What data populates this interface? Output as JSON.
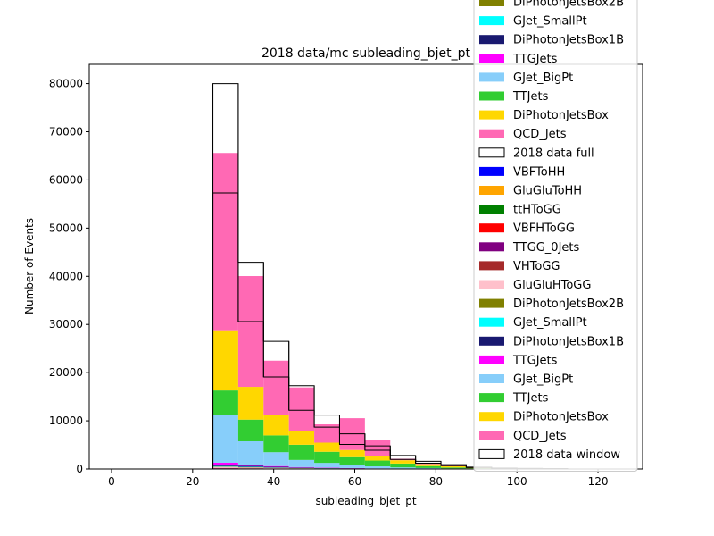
{
  "chart_data": {
    "type": "bar",
    "stacked": true,
    "title": "2018 data/mc subleading_bjet_pt",
    "xlabel": "subleading_bjet_pt",
    "ylabel": "Number of Events",
    "xlim": [
      -5.5,
      131
    ],
    "ylim": [
      0,
      84000
    ],
    "x_ticks": [
      0,
      20,
      40,
      60,
      80,
      100,
      120
    ],
    "y_ticks": [
      0,
      10000,
      20000,
      30000,
      40000,
      50000,
      60000,
      70000,
      80000
    ],
    "bin_edges": [
      0,
      6.25,
      12.5,
      18.75,
      25,
      31.25,
      37.5,
      43.75,
      50,
      56.25,
      62.5,
      68.75,
      75,
      81.25,
      87.5,
      93.75,
      100,
      106.25,
      112.5,
      118.75,
      125
    ],
    "legend_position": "upper right",
    "stack_full": [
      {
        "name": "VBFToHH",
        "color": "#0000ff",
        "values": [
          0,
          0,
          0,
          0,
          0,
          0,
          0,
          0,
          0,
          0,
          0,
          0,
          0,
          0,
          0,
          0,
          0,
          0,
          0,
          0
        ]
      },
      {
        "name": "GluGluToHH",
        "color": "#ffa500",
        "values": [
          0,
          0,
          0,
          0,
          0,
          0,
          0,
          0,
          0,
          0,
          0,
          0,
          0,
          0,
          0,
          0,
          0,
          0,
          0,
          0
        ]
      },
      {
        "name": "ttHToGG",
        "color": "#008000",
        "values": [
          0,
          0,
          0,
          0,
          50,
          40,
          30,
          20,
          15,
          10,
          6,
          4,
          3,
          2,
          1,
          0,
          0,
          0,
          0,
          0
        ]
      },
      {
        "name": "VBFHToGG",
        "color": "#ff0000",
        "values": [
          0,
          0,
          0,
          0,
          60,
          40,
          30,
          20,
          15,
          10,
          6,
          4,
          3,
          2,
          1,
          0,
          0,
          0,
          0,
          0
        ]
      },
      {
        "name": "TTGG_0Jets",
        "color": "#800080",
        "values": [
          0,
          0,
          0,
          0,
          50,
          40,
          30,
          20,
          15,
          10,
          6,
          4,
          3,
          2,
          1,
          0,
          0,
          0,
          0,
          0
        ]
      },
      {
        "name": "VHToGG",
        "color": "#a52a2a",
        "values": [
          0,
          0,
          0,
          0,
          60,
          40,
          30,
          20,
          15,
          10,
          6,
          4,
          3,
          2,
          1,
          0,
          0,
          0,
          0,
          0
        ]
      },
      {
        "name": "GluGluHToGG",
        "color": "#ffc0cb",
        "values": [
          0,
          0,
          0,
          0,
          200,
          150,
          100,
          70,
          50,
          30,
          20,
          12,
          8,
          5,
          3,
          0,
          0,
          0,
          0,
          0
        ]
      },
      {
        "name": "DiPhotonJetsBox2B",
        "color": "#808000",
        "values": [
          0,
          0,
          0,
          0,
          80,
          60,
          40,
          30,
          20,
          15,
          10,
          6,
          4,
          3,
          2,
          0,
          0,
          0,
          0,
          0
        ]
      },
      {
        "name": "GJet_SmallPt",
        "color": "#00ffff",
        "values": [
          0,
          0,
          0,
          0,
          100,
          80,
          50,
          30,
          20,
          15,
          10,
          6,
          4,
          3,
          2,
          0,
          0,
          0,
          0,
          0
        ]
      },
      {
        "name": "DiPhotonJetsBox1B",
        "color": "#191970",
        "values": [
          0,
          0,
          0,
          0,
          300,
          200,
          150,
          100,
          70,
          50,
          30,
          20,
          12,
          8,
          5,
          0,
          0,
          0,
          0,
          0
        ]
      },
      {
        "name": "TTGJets",
        "color": "#ff00ff",
        "values": [
          0,
          0,
          0,
          0,
          400,
          200,
          150,
          100,
          70,
          50,
          30,
          20,
          12,
          8,
          5,
          0,
          0,
          0,
          0,
          0
        ]
      },
      {
        "name": "GJet_BigPt",
        "color": "#87cefa",
        "values": [
          0,
          0,
          0,
          0,
          10000,
          4900,
          2870,
          1470,
          980,
          650,
          430,
          250,
          150,
          80,
          45,
          0,
          0,
          0,
          0,
          0
        ]
      },
      {
        "name": "TTJets",
        "color": "#32cd32",
        "values": [
          0,
          0,
          0,
          0,
          5000,
          4500,
          3500,
          3150,
          2300,
          1600,
          1200,
          800,
          400,
          200,
          100,
          0,
          0,
          0,
          0,
          0
        ]
      },
      {
        "name": "DiPhotonJetsBox",
        "color": "#ffd700",
        "values": [
          0,
          0,
          0,
          0,
          12500,
          6800,
          4300,
          2800,
          1900,
          1500,
          1000,
          700,
          400,
          250,
          130,
          0,
          0,
          0,
          0,
          0
        ]
      },
      {
        "name": "QCD_Jets",
        "color": "#ff69b4",
        "values": [
          0,
          0,
          0,
          0,
          36800,
          23000,
          11200,
          9100,
          3800,
          6600,
          3200,
          300,
          200,
          100,
          0,
          0,
          0,
          0,
          0,
          0
        ]
      }
    ],
    "data_full": {
      "name": "2018 data full",
      "values": [
        0,
        0,
        0,
        0,
        80000,
        42900,
        26500,
        17300,
        11200,
        7300,
        4800,
        2800,
        1600,
        900,
        400,
        200,
        150,
        100,
        0,
        0
      ]
    },
    "stack_window_note": "second stack drawn on same axes",
    "stack_window": [
      {
        "name": "VBFToHH",
        "color": "#0000ff",
        "values": [
          0,
          0,
          0,
          0,
          0,
          0,
          0,
          0,
          0,
          0,
          0,
          0,
          0,
          0,
          0,
          0,
          0,
          0,
          0,
          0
        ]
      },
      {
        "name": "GluGluToHH",
        "color": "#ffa500",
        "values": [
          0,
          0,
          0,
          0,
          0,
          0,
          0,
          0,
          0,
          0,
          0,
          0,
          0,
          0,
          0,
          0,
          0,
          0,
          0,
          0
        ]
      },
      {
        "name": "ttHToGG",
        "color": "#008000",
        "values": [
          0,
          0,
          0,
          0,
          0,
          0,
          0,
          0,
          0,
          0,
          0,
          0,
          0,
          0,
          0,
          0,
          0,
          0,
          0,
          0
        ]
      },
      {
        "name": "VBFHToGG",
        "color": "#ff0000",
        "values": [
          0,
          0,
          0,
          0,
          0,
          0,
          0,
          0,
          0,
          0,
          0,
          0,
          0,
          0,
          0,
          0,
          0,
          0,
          0,
          0
        ]
      },
      {
        "name": "TTGG_0Jets",
        "color": "#800080",
        "values": [
          0,
          0,
          0,
          0,
          0,
          0,
          0,
          0,
          0,
          0,
          0,
          0,
          0,
          0,
          0,
          0,
          0,
          0,
          0,
          0
        ]
      },
      {
        "name": "VHToGG",
        "color": "#a52a2a",
        "values": [
          0,
          0,
          0,
          0,
          0,
          0,
          0,
          0,
          0,
          0,
          0,
          0,
          0,
          0,
          0,
          0,
          0,
          0,
          0,
          0
        ]
      },
      {
        "name": "GluGluHToGG",
        "color": "#ffc0cb",
        "values": [
          0,
          0,
          0,
          0,
          0,
          0,
          0,
          0,
          0,
          0,
          0,
          0,
          0,
          0,
          0,
          0,
          0,
          0,
          0,
          0
        ]
      },
      {
        "name": "DiPhotonJetsBox2B",
        "color": "#808000",
        "values": [
          0,
          0,
          0,
          0,
          0,
          0,
          0,
          0,
          0,
          0,
          0,
          0,
          0,
          0,
          0,
          0,
          0,
          0,
          0,
          0
        ]
      },
      {
        "name": "GJet_SmallPt",
        "color": "#00ffff",
        "values": [
          0,
          0,
          0,
          0,
          0,
          0,
          0,
          0,
          0,
          0,
          0,
          0,
          0,
          0,
          0,
          0,
          0,
          0,
          0,
          0
        ]
      },
      {
        "name": "DiPhotonJetsBox1B",
        "color": "#191970",
        "values": [
          0,
          0,
          0,
          0,
          0,
          0,
          0,
          0,
          0,
          0,
          0,
          0,
          0,
          0,
          0,
          0,
          0,
          0,
          0,
          0
        ]
      },
      {
        "name": "TTGJets",
        "color": "#ff00ff",
        "values": [
          0,
          0,
          0,
          0,
          0,
          0,
          0,
          0,
          0,
          0,
          0,
          0,
          0,
          0,
          0,
          0,
          0,
          0,
          0,
          0
        ]
      },
      {
        "name": "GJet_BigPt",
        "color": "#87cefa",
        "values": [
          0,
          0,
          0,
          0,
          0,
          0,
          0,
          0,
          0,
          0,
          0,
          0,
          0,
          0,
          0,
          0,
          0,
          0,
          0,
          0
        ]
      },
      {
        "name": "TTJets",
        "color": "#32cd32",
        "values": [
          0,
          0,
          0,
          0,
          0,
          0,
          0,
          0,
          0,
          0,
          0,
          0,
          0,
          0,
          0,
          0,
          0,
          0,
          0,
          0
        ]
      },
      {
        "name": "DiPhotonJetsBox",
        "color": "#ffd700",
        "values": [
          0,
          0,
          0,
          0,
          0,
          0,
          0,
          0,
          0,
          0,
          0,
          0,
          0,
          0,
          0,
          0,
          0,
          0,
          0,
          0
        ]
      },
      {
        "name": "QCD_Jets",
        "color": "#ff69b4",
        "values": [
          0,
          0,
          0,
          0,
          0,
          0,
          0,
          0,
          0,
          0,
          0,
          0,
          0,
          0,
          0,
          0,
          0,
          0,
          0,
          0
        ]
      }
    ],
    "data_window": {
      "name": "2018 data window",
      "values": [
        0,
        0,
        0,
        0,
        57300,
        30600,
        19100,
        12200,
        8700,
        5100,
        3900,
        2000,
        1200,
        700,
        300,
        150,
        100,
        50,
        0,
        0
      ]
    },
    "legend": [
      {
        "label": "DiPhotonJetsBox2B",
        "color": "#808000",
        "kind": "fill"
      },
      {
        "label": "GJet_SmallPt",
        "color": "#00ffff",
        "kind": "fill"
      },
      {
        "label": "DiPhotonJetsBox1B",
        "color": "#191970",
        "kind": "fill"
      },
      {
        "label": "TTGJets",
        "color": "#ff00ff",
        "kind": "fill"
      },
      {
        "label": "GJet_BigPt",
        "color": "#87cefa",
        "kind": "fill"
      },
      {
        "label": "TTJets",
        "color": "#32cd32",
        "kind": "fill"
      },
      {
        "label": "DiPhotonJetsBox",
        "color": "#ffd700",
        "kind": "fill"
      },
      {
        "label": "QCD_Jets",
        "color": "#ff69b4",
        "kind": "fill"
      },
      {
        "label": "2018 data full",
        "color": "#ffffff",
        "kind": "outline"
      },
      {
        "label": "VBFToHH",
        "color": "#0000ff",
        "kind": "fill"
      },
      {
        "label": "GluGluToHH",
        "color": "#ffa500",
        "kind": "fill"
      },
      {
        "label": "ttHToGG",
        "color": "#008000",
        "kind": "fill"
      },
      {
        "label": "VBFHToGG",
        "color": "#ff0000",
        "kind": "fill"
      },
      {
        "label": "TTGG_0Jets",
        "color": "#800080",
        "kind": "fill"
      },
      {
        "label": "VHToGG",
        "color": "#a52a2a",
        "kind": "fill"
      },
      {
        "label": "GluGluHToGG",
        "color": "#ffc0cb",
        "kind": "fill"
      },
      {
        "label": "DiPhotonJetsBox2B",
        "color": "#808000",
        "kind": "fill"
      },
      {
        "label": "GJet_SmallPt",
        "color": "#00ffff",
        "kind": "fill"
      },
      {
        "label": "DiPhotonJetsBox1B",
        "color": "#191970",
        "kind": "fill"
      },
      {
        "label": "TTGJets",
        "color": "#ff00ff",
        "kind": "fill"
      },
      {
        "label": "GJet_BigPt",
        "color": "#87cefa",
        "kind": "fill"
      },
      {
        "label": "TTJets",
        "color": "#32cd32",
        "kind": "fill"
      },
      {
        "label": "DiPhotonJetsBox",
        "color": "#ffd700",
        "kind": "fill"
      },
      {
        "label": "QCD_Jets",
        "color": "#ff69b4",
        "kind": "fill"
      },
      {
        "label": "2018 data window",
        "color": "#ffffff",
        "kind": "outline"
      }
    ]
  }
}
